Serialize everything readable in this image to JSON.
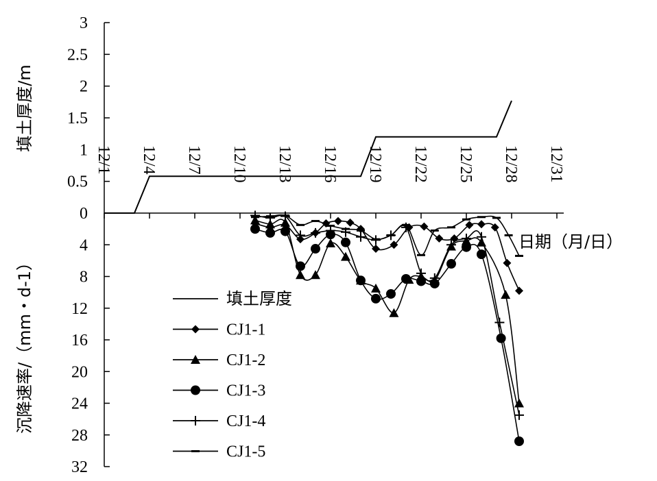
{
  "chart_data": {
    "type": "line",
    "x_axis": {
      "ticks": [
        "12/1",
        "12/4",
        "12/7",
        "12/10",
        "12/13",
        "12/16",
        "12/19",
        "12/22",
        "12/25",
        "12/28",
        "12/31"
      ],
      "label": "日期（月/日）"
    },
    "top_panel": {
      "ylabel": "填土厚度/m",
      "ylim": [
        0,
        3
      ],
      "yticks": [
        "0",
        "0.5",
        "1",
        "1.5",
        "2",
        "2.5",
        "3"
      ],
      "series": [
        {
          "name": "填土厚度",
          "marker": "none",
          "points": [
            [
              1,
              0
            ],
            [
              3,
              0
            ],
            [
              4,
              0.58
            ],
            [
              18,
              0.58
            ],
            [
              19,
              1.2
            ],
            [
              27,
              1.2
            ],
            [
              28,
              1.77
            ]
          ]
        }
      ]
    },
    "bottom_panel": {
      "ylabel": "沉降速率/（mm・d-1）",
      "ylim": [
        0,
        32
      ],
      "yticks": [
        "0",
        "4",
        "8",
        "12",
        "16",
        "20",
        "24",
        "28",
        "32"
      ],
      "series": [
        {
          "name": "CJ1-1",
          "marker": "diamond",
          "points": [
            [
              11,
              1.3
            ],
            [
              12,
              1.8
            ],
            [
              13,
              1.5
            ],
            [
              14,
              3.3
            ],
            [
              15,
              2.5
            ],
            [
              15.7,
              1.3
            ],
            [
              16.5,
              1.0
            ],
            [
              17.3,
              1.2
            ],
            [
              18,
              2.0
            ],
            [
              19,
              4.5
            ],
            [
              20.2,
              4.0
            ],
            [
              21.2,
              1.8
            ],
            [
              22.2,
              1.7
            ],
            [
              23.2,
              3.2
            ],
            [
              24.2,
              3.2
            ],
            [
              25.2,
              1.5
            ],
            [
              26,
              1.4
            ],
            [
              26.9,
              1.8
            ],
            [
              27.7,
              6.3
            ],
            [
              28.5,
              9.8
            ]
          ]
        },
        {
          "name": "CJ1-2",
          "marker": "triangle",
          "points": [
            [
              11,
              0.9
            ],
            [
              12,
              1.4
            ],
            [
              13,
              1.2
            ],
            [
              14,
              7.8
            ],
            [
              15,
              7.8
            ],
            [
              16,
              3.8
            ],
            [
              17,
              5.5
            ],
            [
              18,
              8.5
            ],
            [
              19,
              9.5
            ],
            [
              20.2,
              12.6
            ],
            [
              21.2,
              8.4
            ],
            [
              22,
              8.0
            ],
            [
              22.9,
              8.5
            ],
            [
              24,
              4.2
            ],
            [
              25,
              3.5
            ],
            [
              26,
              3.7
            ],
            [
              27.6,
              10.3
            ],
            [
              28.5,
              24.0
            ]
          ]
        },
        {
          "name": "CJ1-3",
          "marker": "circle",
          "points": [
            [
              11,
              2.0
            ],
            [
              12,
              2.5
            ],
            [
              13,
              2.3
            ],
            [
              14,
              6.7
            ],
            [
              15,
              4.5
            ],
            [
              16,
              2.7
            ],
            [
              17,
              3.7
            ],
            [
              18,
              8.5
            ],
            [
              19,
              10.8
            ],
            [
              20,
              10.2
            ],
            [
              21,
              8.3
            ],
            [
              22,
              8.6
            ],
            [
              22.9,
              8.9
            ],
            [
              24,
              6.4
            ],
            [
              25,
              4.3
            ],
            [
              26,
              5.2
            ],
            [
              27.3,
              15.8
            ],
            [
              28.5,
              28.8
            ]
          ]
        },
        {
          "name": "CJ1-4",
          "marker": "plus",
          "points": [
            [
              11,
              0.3
            ],
            [
              12,
              0.6
            ],
            [
              13,
              0.4
            ],
            [
              14,
              2.8
            ],
            [
              15,
              2.5
            ],
            [
              16,
              2.2
            ],
            [
              17,
              2.4
            ],
            [
              18,
              3.0
            ],
            [
              19,
              3.4
            ],
            [
              20,
              2.8
            ],
            [
              21,
              1.8
            ],
            [
              22,
              7.6
            ],
            [
              22.9,
              8.2
            ],
            [
              24,
              4.0
            ],
            [
              25,
              3.2
            ],
            [
              26,
              3.0
            ],
            [
              27.2,
              13.8
            ],
            [
              28.5,
              25.5
            ]
          ]
        },
        {
          "name": "CJ1-5",
          "marker": "dash",
          "points": [
            [
              11,
              0.5
            ],
            [
              12,
              0.4
            ],
            [
              13,
              0.3
            ],
            [
              14,
              1.5
            ],
            [
              15,
              1.0
            ],
            [
              16,
              1.6
            ],
            [
              17,
              2.0
            ],
            [
              18,
              2.2
            ],
            [
              19,
              3.3
            ],
            [
              20,
              2.8
            ],
            [
              21,
              1.5
            ],
            [
              22,
              5.3
            ],
            [
              22.9,
              2.2
            ],
            [
              24,
              1.8
            ],
            [
              25,
              0.8
            ],
            [
              26,
              0.5
            ],
            [
              27,
              0.6
            ],
            [
              27.8,
              2.8
            ],
            [
              28.5,
              5.4
            ]
          ]
        }
      ]
    }
  }
}
